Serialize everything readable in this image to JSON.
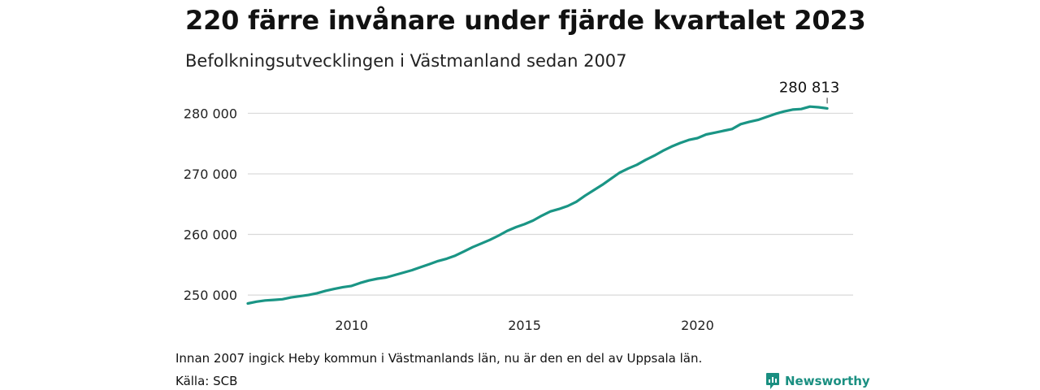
{
  "chart_data": {
    "type": "line",
    "title": "220 färre invånare under fjärde kvartalet 2023",
    "subtitle": "Befolkningsutvecklingen i Västmanland sedan 2007",
    "xlabel": "",
    "ylabel": "",
    "x_ticks": [
      2010,
      2015,
      2020
    ],
    "y_ticks": [
      250000,
      260000,
      270000,
      280000
    ],
    "y_tick_labels": [
      "250 000",
      "260 000",
      "270 000",
      "280 000"
    ],
    "xlim": [
      2007.0,
      2024.5
    ],
    "ylim": [
      248000,
      281800
    ],
    "grid": "horizontal",
    "line_color": "#1a9585",
    "grid_color": "#d9d9d9",
    "series": [
      {
        "x": [
          2007.0,
          2007.25,
          2007.5,
          2007.75,
          2008.0,
          2008.25,
          2008.5,
          2008.75,
          2009.0,
          2009.25,
          2009.5,
          2009.75,
          2010.0,
          2010.25,
          2010.5,
          2010.75,
          2011.0,
          2011.25,
          2011.5,
          2011.75,
          2012.0,
          2012.25,
          2012.5,
          2012.75,
          2013.0,
          2013.25,
          2013.5,
          2013.75,
          2014.0,
          2014.25,
          2014.5,
          2014.75,
          2015.0,
          2015.25,
          2015.5,
          2015.75,
          2016.0,
          2016.25,
          2016.5,
          2016.75,
          2017.0,
          2017.25,
          2017.5,
          2017.75,
          2018.0,
          2018.25,
          2018.5,
          2018.75,
          2019.0,
          2019.25,
          2019.5,
          2019.75,
          2020.0,
          2020.25,
          2020.5,
          2020.75,
          2021.0,
          2021.25,
          2021.5,
          2021.75,
          2022.0,
          2022.25,
          2022.5,
          2022.75,
          2023.0,
          2023.25,
          2023.5,
          2023.75
        ],
        "y": [
          248600,
          248900,
          249100,
          249200,
          249300,
          249600,
          249800,
          250000,
          250300,
          250700,
          251000,
          251300,
          251500,
          252000,
          252400,
          252700,
          252900,
          253300,
          253700,
          254100,
          254600,
          255100,
          255600,
          256000,
          256500,
          257200,
          257900,
          258500,
          259100,
          259800,
          260600,
          261200,
          261700,
          262300,
          263100,
          263800,
          264200,
          264700,
          265400,
          266400,
          267300,
          268200,
          269200,
          270200,
          270900,
          271500,
          272300,
          273000,
          273800,
          274500,
          275100,
          275600,
          275900,
          276500,
          276800,
          277100,
          277400,
          278200,
          278600,
          278900,
          279400,
          279900,
          280300,
          280600,
          280700,
          281100,
          281000,
          280813
        ]
      }
    ],
    "annotation": "280 813"
  },
  "footnote": "Innan 2007 ingick Heby kommun i Västmanlands län, nu är den en del av Uppsala län.",
  "source": "Källa: SCB",
  "brand": {
    "name": "Newsworthy",
    "icon": "newsworthy-logo-icon",
    "color": "#1a8f81"
  }
}
